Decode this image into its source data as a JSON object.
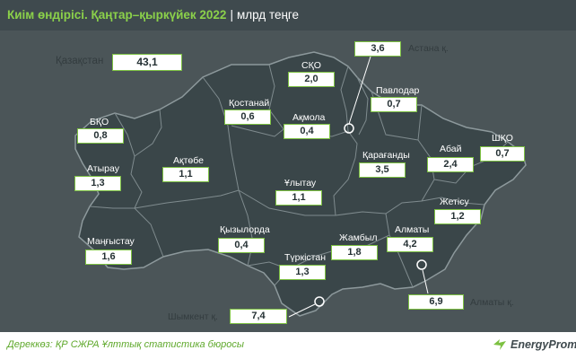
{
  "header": {
    "title": "Киім өндірісі. Қаңтар–қыркүйек 2022",
    "separator": "|",
    "unit": "млрд теңге"
  },
  "colors": {
    "header_bg": "#3f4a4e",
    "title_accent": "#8bd14a",
    "map_bg": "#4b5558",
    "region_fill": "#3a4649",
    "border": "#7f8b8e",
    "box_border": "#7dc142"
  },
  "total": {
    "label": "Қазақстан",
    "value": "43,1"
  },
  "regions": [
    {
      "name": "Астана қ.",
      "value": "3,6"
    },
    {
      "name": "СҚО",
      "value": "2,0"
    },
    {
      "name": "Павлодар",
      "value": "0,7"
    },
    {
      "name": "Қостанай",
      "value": "0,6"
    },
    {
      "name": "Ақмола",
      "value": "0,4"
    },
    {
      "name": "БҚО",
      "value": "0,8"
    },
    {
      "name": "Абай",
      "value": "2,4"
    },
    {
      "name": "ШҚО",
      "value": "0,7"
    },
    {
      "name": "Атырау",
      "value": "1,3"
    },
    {
      "name": "Ақтөбе",
      "value": "1,1"
    },
    {
      "name": "Қарағанды",
      "value": "3,5"
    },
    {
      "name": "Ұлытау",
      "value": "1,1"
    },
    {
      "name": "Жетісу",
      "value": "1,2"
    },
    {
      "name": "Маңғыстау",
      "value": "1,6"
    },
    {
      "name": "Қызылорда",
      "value": "0,4"
    },
    {
      "name": "Жамбыл",
      "value": "1,8"
    },
    {
      "name": "Алматы",
      "value": "4,2"
    },
    {
      "name": "Түркістан",
      "value": "1,3"
    },
    {
      "name": "Алматы қ.",
      "value": "6,9"
    },
    {
      "name": "Шымкент қ.",
      "value": "7,4"
    }
  ],
  "footer": {
    "source": "Дереккөз: ҚР СЖРА Ұлттық статистика бюросы",
    "brand": "EnergyProm",
    "logo_icon": "energyprom-logo-icon"
  }
}
